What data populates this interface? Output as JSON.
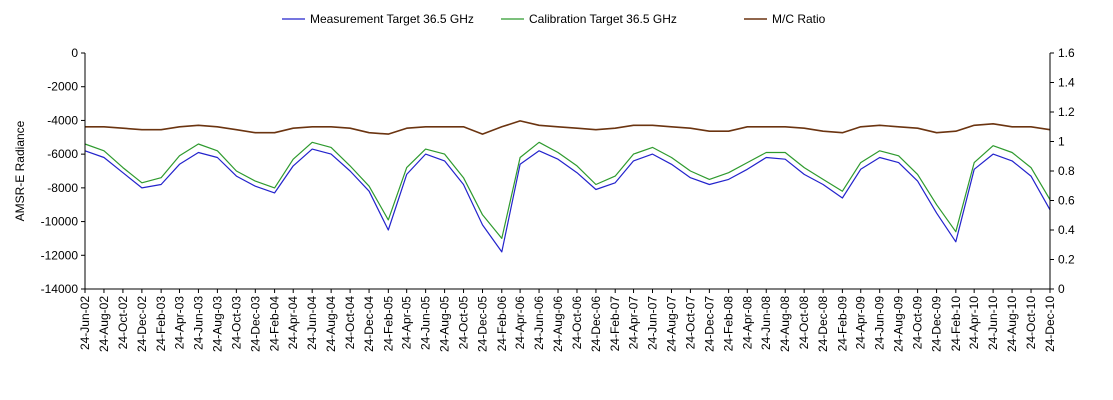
{
  "chart_data": {
    "type": "line",
    "title": "",
    "ylabel": "AMSR-E Radiance",
    "y2label": "",
    "xlabel": "",
    "ylim": [
      -14000,
      0
    ],
    "y2lim": [
      0,
      1.6
    ],
    "y_ticks": [
      "0",
      "-2000",
      "-4000",
      "-6000",
      "-8000",
      "-10000",
      "-12000",
      "-14000"
    ],
    "y2_ticks": [
      "1.6",
      "1.4",
      "1.2",
      "1",
      "0.8",
      "0.6",
      "0.4",
      "0.2",
      "0"
    ],
    "x_ticks": [
      "24-Jun-02",
      "24-Aug-02",
      "24-Oct-02",
      "24-Dec-02",
      "24-Feb-03",
      "24-Apr-03",
      "24-Jun-03",
      "24-Aug-03",
      "24-Oct-03",
      "24-Dec-03",
      "24-Feb-04",
      "24-Apr-04",
      "24-Jun-04",
      "24-Aug-04",
      "24-Oct-04",
      "24-Dec-04",
      "24-Feb-05",
      "24-Apr-05",
      "24-Jun-05",
      "24-Aug-05",
      "24-Oct-05",
      "24-Dec-05",
      "24-Feb-06",
      "24-Apr-06",
      "24-Jun-06",
      "24-Aug-06",
      "24-Oct-06",
      "24-Dec-06",
      "24-Feb-07",
      "24-Apr-07",
      "24-Jun-07",
      "24-Aug-07",
      "24-Oct-07",
      "24-Dec-07",
      "24-Feb-08",
      "24-Apr-08",
      "24-Jun-08",
      "24-Aug-08",
      "24-Oct-08",
      "24-Dec-08",
      "24-Feb-09",
      "24-Apr-09",
      "24-Jun-09",
      "24-Aug-09",
      "24-Oct-09",
      "24-Dec-09",
      "24-Feb-10",
      "24-Apr-10",
      "24-Jun-10",
      "24-Aug-10",
      "24-Oct-10",
      "24-Dec-10"
    ],
    "grid": false,
    "legend_position": "top",
    "series": [
      {
        "name": "Measurement Target 36.5 GHz",
        "axis": "left",
        "color": "#2323cc",
        "points": [
          [
            "24-Jun-02",
            -5800
          ],
          [
            "24-Aug-02",
            -6200
          ],
          [
            "24-Oct-02",
            -7100
          ],
          [
            "24-Dec-02",
            -8000
          ],
          [
            "24-Feb-03",
            -7800
          ],
          [
            "24-Apr-03",
            -6600
          ],
          [
            "24-Jun-03",
            -5900
          ],
          [
            "24-Aug-03",
            -6200
          ],
          [
            "24-Oct-03",
            -7300
          ],
          [
            "24-Dec-03",
            -7900
          ],
          [
            "24-Feb-04",
            -8300
          ],
          [
            "24-Apr-04",
            -6700
          ],
          [
            "24-Jun-04",
            -5700
          ],
          [
            "24-Aug-04",
            -6000
          ],
          [
            "24-Oct-04",
            -7000
          ],
          [
            "24-Dec-04",
            -8200
          ],
          [
            "24-Feb-05",
            -10500
          ],
          [
            "24-Apr-05",
            -7200
          ],
          [
            "24-Jun-05",
            -6000
          ],
          [
            "24-Aug-05",
            -6400
          ],
          [
            "24-Oct-05",
            -7800
          ],
          [
            "24-Dec-05",
            -10200
          ],
          [
            "24-Feb-06",
            -11800
          ],
          [
            "24-Apr-06",
            -6600
          ],
          [
            "24-Jun-06",
            -5800
          ],
          [
            "24-Aug-06",
            -6300
          ],
          [
            "24-Oct-06",
            -7100
          ],
          [
            "24-Dec-06",
            -8100
          ],
          [
            "24-Feb-07",
            -7700
          ],
          [
            "24-Apr-07",
            -6400
          ],
          [
            "24-Jun-07",
            -6000
          ],
          [
            "24-Aug-07",
            -6600
          ],
          [
            "24-Oct-07",
            -7400
          ],
          [
            "24-Dec-07",
            -7800
          ],
          [
            "24-Feb-08",
            -7500
          ],
          [
            "24-Apr-08",
            -6900
          ],
          [
            "24-Jun-08",
            -6200
          ],
          [
            "24-Aug-08",
            -6300
          ],
          [
            "24-Oct-08",
            -7200
          ],
          [
            "24-Dec-08",
            -7800
          ],
          [
            "24-Feb-09",
            -8600
          ],
          [
            "24-Apr-09",
            -6900
          ],
          [
            "24-Jun-09",
            -6200
          ],
          [
            "24-Aug-09",
            -6500
          ],
          [
            "24-Oct-09",
            -7600
          ],
          [
            "24-Dec-09",
            -9500
          ],
          [
            "24-Feb-10",
            -11200
          ],
          [
            "24-Apr-10",
            -6900
          ],
          [
            "24-Jun-10",
            -6000
          ],
          [
            "24-Aug-10",
            -6400
          ],
          [
            "24-Oct-10",
            -7300
          ],
          [
            "24-Dec-10",
            -9300
          ]
        ]
      },
      {
        "name": "Calibration Target 36.5 GHz",
        "axis": "left",
        "color": "#2e9a2e",
        "points": [
          [
            "24-Jun-02",
            -5400
          ],
          [
            "24-Aug-02",
            -5800
          ],
          [
            "24-Oct-02",
            -6800
          ],
          [
            "24-Dec-02",
            -7700
          ],
          [
            "24-Feb-03",
            -7400
          ],
          [
            "24-Apr-03",
            -6100
          ],
          [
            "24-Jun-03",
            -5400
          ],
          [
            "24-Aug-03",
            -5800
          ],
          [
            "24-Oct-03",
            -7000
          ],
          [
            "24-Dec-03",
            -7600
          ],
          [
            "24-Feb-04",
            -8000
          ],
          [
            "24-Apr-04",
            -6300
          ],
          [
            "24-Jun-04",
            -5300
          ],
          [
            "24-Aug-04",
            -5600
          ],
          [
            "24-Oct-04",
            -6700
          ],
          [
            "24-Dec-04",
            -7900
          ],
          [
            "24-Feb-05",
            -9900
          ],
          [
            "24-Apr-05",
            -6800
          ],
          [
            "24-Jun-05",
            -5700
          ],
          [
            "24-Aug-05",
            -6000
          ],
          [
            "24-Oct-05",
            -7400
          ],
          [
            "24-Dec-05",
            -9600
          ],
          [
            "24-Feb-06",
            -11000
          ],
          [
            "24-Apr-06",
            -6200
          ],
          [
            "24-Jun-06",
            -5300
          ],
          [
            "24-Aug-06",
            -5900
          ],
          [
            "24-Oct-06",
            -6700
          ],
          [
            "24-Dec-06",
            -7800
          ],
          [
            "24-Feb-07",
            -7300
          ],
          [
            "24-Apr-07",
            -6000
          ],
          [
            "24-Jun-07",
            -5600
          ],
          [
            "24-Aug-07",
            -6200
          ],
          [
            "24-Oct-07",
            -7000
          ],
          [
            "24-Dec-07",
            -7500
          ],
          [
            "24-Feb-08",
            -7100
          ],
          [
            "24-Apr-08",
            -6500
          ],
          [
            "24-Jun-08",
            -5900
          ],
          [
            "24-Aug-08",
            -5900
          ],
          [
            "24-Oct-08",
            -6800
          ],
          [
            "24-Dec-08",
            -7500
          ],
          [
            "24-Feb-09",
            -8200
          ],
          [
            "24-Apr-09",
            -6500
          ],
          [
            "24-Jun-09",
            -5800
          ],
          [
            "24-Aug-09",
            -6100
          ],
          [
            "24-Oct-09",
            -7200
          ],
          [
            "24-Dec-09",
            -9000
          ],
          [
            "24-Feb-10",
            -10600
          ],
          [
            "24-Apr-10",
            -6500
          ],
          [
            "24-Jun-10",
            -5500
          ],
          [
            "24-Aug-10",
            -5900
          ],
          [
            "24-Oct-10",
            -6800
          ],
          [
            "24-Dec-10",
            -8700
          ]
        ]
      },
      {
        "name": "M/C Ratio",
        "axis": "right",
        "color": "#6b3410",
        "points": [
          [
            "24-Jun-02",
            1.1
          ],
          [
            "24-Aug-02",
            1.1
          ],
          [
            "24-Oct-02",
            1.09
          ],
          [
            "24-Dec-02",
            1.08
          ],
          [
            "24-Feb-03",
            1.08
          ],
          [
            "24-Apr-03",
            1.1
          ],
          [
            "24-Jun-03",
            1.11
          ],
          [
            "24-Aug-03",
            1.1
          ],
          [
            "24-Oct-03",
            1.08
          ],
          [
            "24-Dec-03",
            1.06
          ],
          [
            "24-Feb-04",
            1.06
          ],
          [
            "24-Apr-04",
            1.09
          ],
          [
            "24-Jun-04",
            1.1
          ],
          [
            "24-Aug-04",
            1.1
          ],
          [
            "24-Oct-04",
            1.09
          ],
          [
            "24-Dec-04",
            1.06
          ],
          [
            "24-Feb-05",
            1.05
          ],
          [
            "24-Apr-05",
            1.09
          ],
          [
            "24-Jun-05",
            1.1
          ],
          [
            "24-Aug-05",
            1.1
          ],
          [
            "24-Oct-05",
            1.1
          ],
          [
            "24-Dec-05",
            1.05
          ],
          [
            "24-Feb-06",
            1.1
          ],
          [
            "24-Apr-06",
            1.14
          ],
          [
            "24-Jun-06",
            1.11
          ],
          [
            "24-Aug-06",
            1.1
          ],
          [
            "24-Oct-06",
            1.09
          ],
          [
            "24-Dec-06",
            1.08
          ],
          [
            "24-Feb-07",
            1.09
          ],
          [
            "24-Apr-07",
            1.11
          ],
          [
            "24-Jun-07",
            1.11
          ],
          [
            "24-Aug-07",
            1.1
          ],
          [
            "24-Oct-07",
            1.09
          ],
          [
            "24-Dec-07",
            1.07
          ],
          [
            "24-Feb-08",
            1.07
          ],
          [
            "24-Apr-08",
            1.1
          ],
          [
            "24-Jun-08",
            1.1
          ],
          [
            "24-Aug-08",
            1.1
          ],
          [
            "24-Oct-08",
            1.09
          ],
          [
            "24-Dec-08",
            1.07
          ],
          [
            "24-Feb-09",
            1.06
          ],
          [
            "24-Apr-09",
            1.1
          ],
          [
            "24-Jun-09",
            1.11
          ],
          [
            "24-Aug-09",
            1.1
          ],
          [
            "24-Oct-09",
            1.09
          ],
          [
            "24-Dec-09",
            1.06
          ],
          [
            "24-Feb-10",
            1.07
          ],
          [
            "24-Apr-10",
            1.11
          ],
          [
            "24-Jun-10",
            1.12
          ],
          [
            "24-Aug-10",
            1.1
          ],
          [
            "24-Oct-10",
            1.1
          ],
          [
            "24-Dec-10",
            1.08
          ]
        ]
      }
    ]
  }
}
